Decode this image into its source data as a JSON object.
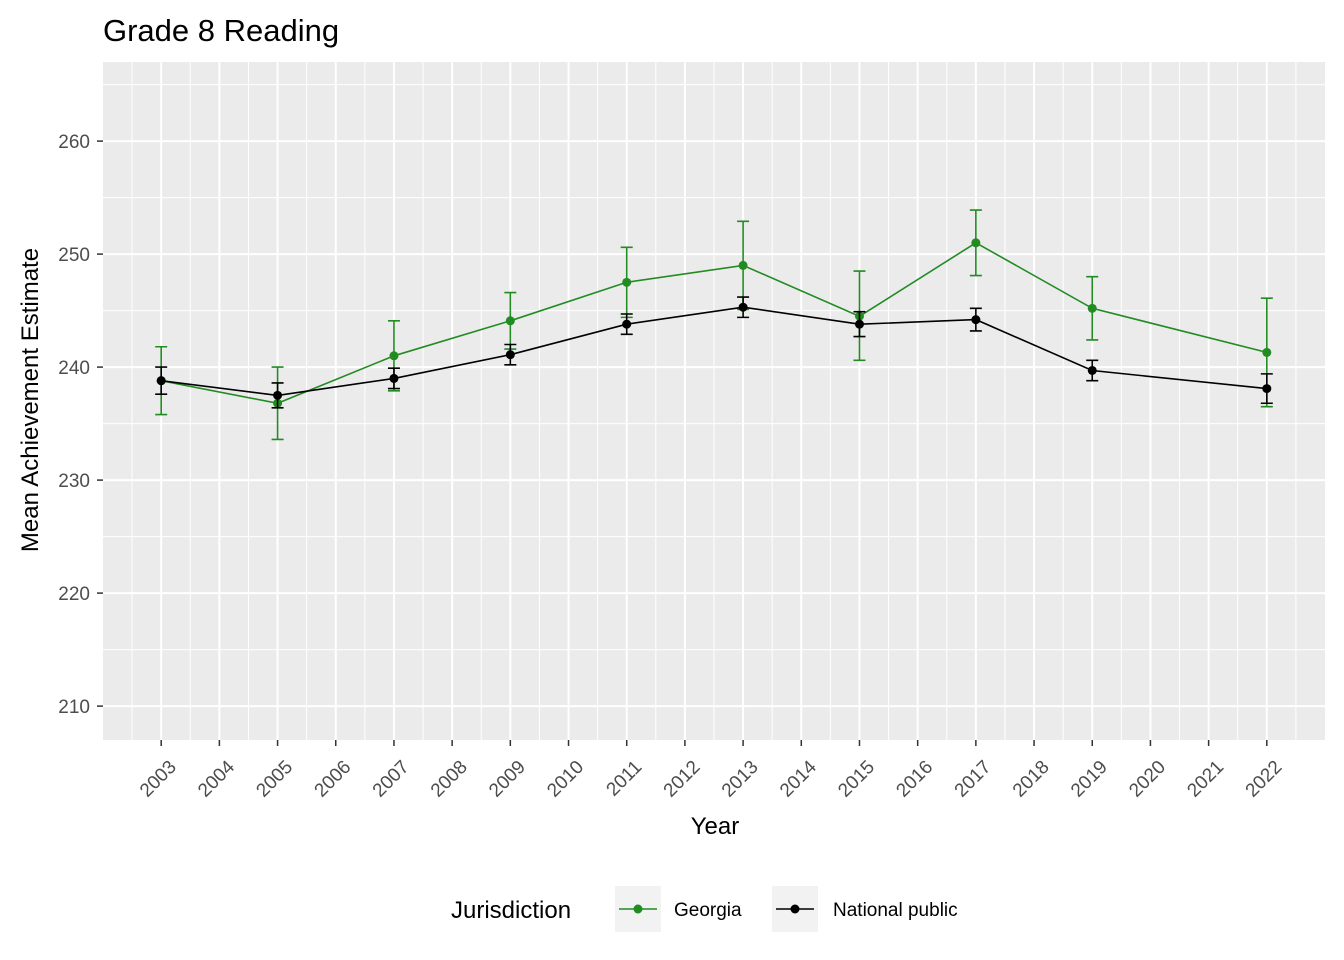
{
  "chart_data": {
    "type": "line",
    "title": "Grade 8 Reading",
    "xlabel": "Year",
    "ylabel": "Mean Achievement Estimate",
    "x_ticks": [
      "2003",
      "2004",
      "2005",
      "2006",
      "2007",
      "2008",
      "2009",
      "2010",
      "2011",
      "2012",
      "2013",
      "2014",
      "2015",
      "2016",
      "2017",
      "2018",
      "2019",
      "2020",
      "2021",
      "2022"
    ],
    "x_range": [
      2002,
      2023
    ],
    "ylim": [
      207,
      267
    ],
    "y_ticks": [
      210,
      220,
      230,
      240,
      250,
      260
    ],
    "grid": true,
    "legend_title": "Jurisdiction",
    "legend_position": "bottom",
    "series": [
      {
        "name": "Georgia",
        "color": "#228B22",
        "points": [
          {
            "x": 2003,
            "y": 238.8,
            "lower": 235.8,
            "upper": 241.8
          },
          {
            "x": 2005,
            "y": 236.8,
            "lower": 233.6,
            "upper": 240.0
          },
          {
            "x": 2007,
            "y": 241.0,
            "lower": 237.9,
            "upper": 244.1
          },
          {
            "x": 2009,
            "y": 244.1,
            "lower": 241.6,
            "upper": 246.6
          },
          {
            "x": 2011,
            "y": 247.5,
            "lower": 244.4,
            "upper": 250.6
          },
          {
            "x": 2013,
            "y": 249.0,
            "lower": 245.1,
            "upper": 252.9
          },
          {
            "x": 2015,
            "y": 244.5,
            "lower": 240.6,
            "upper": 248.5
          },
          {
            "x": 2017,
            "y": 251.0,
            "lower": 248.1,
            "upper": 253.9
          },
          {
            "x": 2019,
            "y": 245.2,
            "lower": 242.4,
            "upper": 248.0
          },
          {
            "x": 2022,
            "y": 241.3,
            "lower": 236.5,
            "upper": 246.1
          }
        ]
      },
      {
        "name": "National public",
        "color": "#000000",
        "points": [
          {
            "x": 2003,
            "y": 238.8,
            "lower": 237.6,
            "upper": 240.0
          },
          {
            "x": 2005,
            "y": 237.5,
            "lower": 236.4,
            "upper": 238.6
          },
          {
            "x": 2007,
            "y": 239.0,
            "lower": 238.1,
            "upper": 239.9
          },
          {
            "x": 2009,
            "y": 241.1,
            "lower": 240.2,
            "upper": 242.0
          },
          {
            "x": 2011,
            "y": 243.8,
            "lower": 242.9,
            "upper": 244.7
          },
          {
            "x": 2013,
            "y": 245.3,
            "lower": 244.4,
            "upper": 246.2
          },
          {
            "x": 2015,
            "y": 243.8,
            "lower": 242.7,
            "upper": 244.9
          },
          {
            "x": 2017,
            "y": 244.2,
            "lower": 243.2,
            "upper": 245.2
          },
          {
            "x": 2019,
            "y": 239.7,
            "lower": 238.8,
            "upper": 240.6
          },
          {
            "x": 2022,
            "y": 238.1,
            "lower": 236.8,
            "upper": 239.4
          }
        ]
      }
    ]
  }
}
